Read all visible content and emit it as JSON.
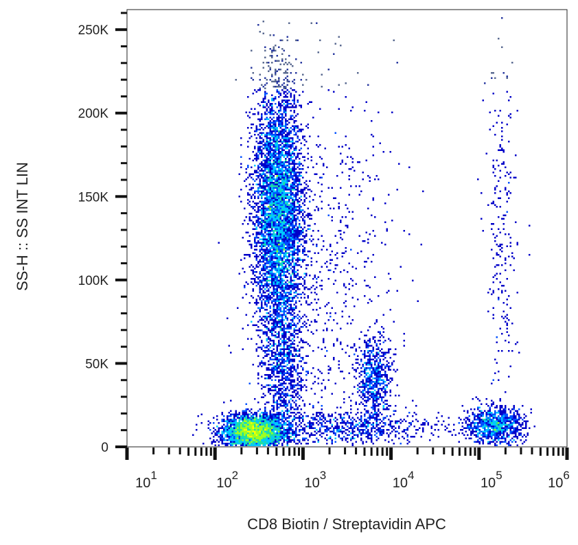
{
  "chart_data": {
    "type": "scatter",
    "subtype": "density-dot-plot",
    "title": "",
    "xlabel": "CD8 Biotin / Streptavidin APC",
    "ylabel": "SS-H :: SS INT LIN",
    "x_scale": "log",
    "xlim": [
      10,
      1000000
    ],
    "ylim": [
      0,
      262000
    ],
    "x_ticks": [
      {
        "value": 10,
        "base": "10",
        "exp": "1"
      },
      {
        "value": 100,
        "base": "10",
        "exp": "2"
      },
      {
        "value": 1000,
        "base": "10",
        "exp": "3"
      },
      {
        "value": 10000,
        "base": "10",
        "exp": "4"
      },
      {
        "value": 100000,
        "base": "10",
        "exp": "5"
      },
      {
        "value": 1000000,
        "base": "10",
        "exp": "6"
      }
    ],
    "y_ticks": [
      {
        "value": 0,
        "label": "0"
      },
      {
        "value": 50000,
        "label": "50K"
      },
      {
        "value": 100000,
        "label": "100K"
      },
      {
        "value": 150000,
        "label": "150K"
      },
      {
        "value": 200000,
        "label": "200K"
      },
      {
        "value": 250000,
        "label": "250K"
      }
    ],
    "grid": false,
    "legend": "none",
    "colormap": [
      "#0000c8",
      "#0050ff",
      "#00c8ff",
      "#20e0a0",
      "#a0ff20",
      "#ffff00",
      "#ffa000",
      "#ff2000",
      "#e00000"
    ],
    "populations": [
      {
        "x_center": 270,
        "y_center": 9000,
        "x_sd_decades": 0.17,
        "y_sd": 5000,
        "count": 3200
      },
      {
        "x_center": 520,
        "y_center": 140000,
        "x_sd_decades": 0.14,
        "y_sd": 38000,
        "count": 5200
      },
      {
        "x_center": 6500,
        "y_center": 40000,
        "x_sd_decades": 0.1,
        "y_sd": 13000,
        "count": 650
      },
      {
        "x_center": 150000,
        "y_center": 13000,
        "x_sd_decades": 0.17,
        "y_sd": 5500,
        "count": 900
      },
      {
        "x_center": 180000,
        "y_center": 110000,
        "x_sd_decades": 0.09,
        "y_sd": 65000,
        "count": 260
      },
      {
        "x_center": 3000,
        "y_center": 12000,
        "x_sd_decades": 0.55,
        "y_sd": 5000,
        "count": 700
      },
      {
        "x_center": 1800,
        "y_center": 100000,
        "x_sd_decades": 0.4,
        "y_sd": 60000,
        "count": 700
      },
      {
        "x_center": 600,
        "y_center": 45000,
        "x_sd_decades": 0.12,
        "y_sd": 25000,
        "count": 900
      }
    ]
  }
}
